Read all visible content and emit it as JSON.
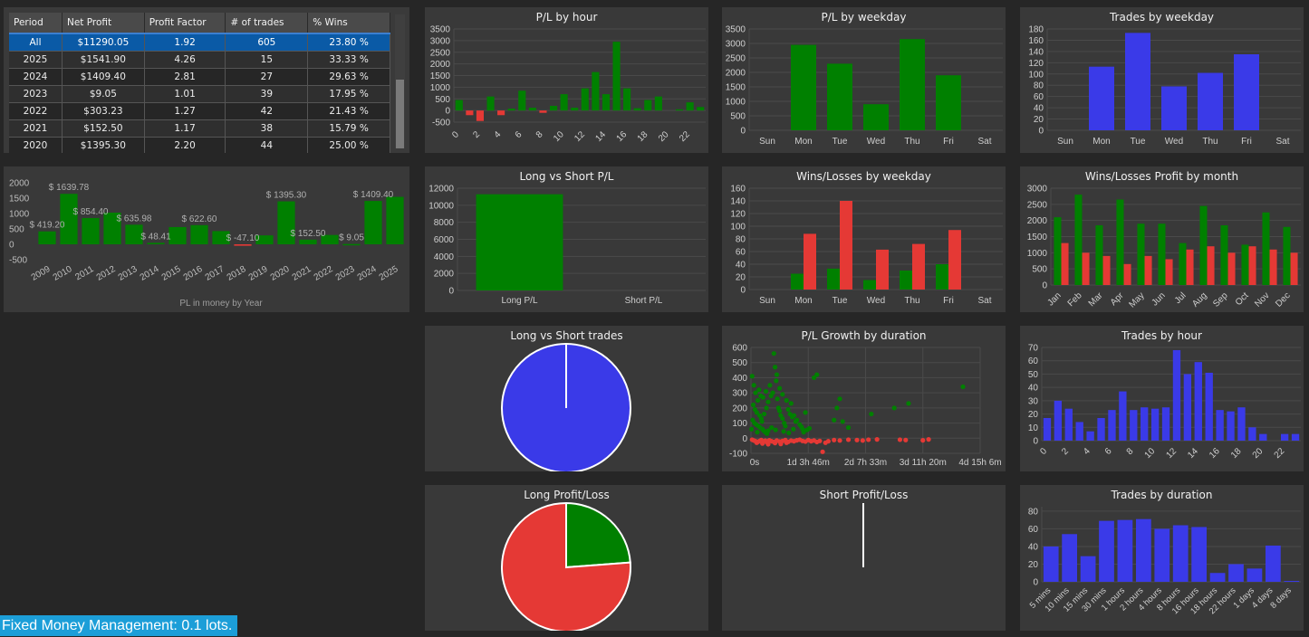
{
  "table": {
    "columns": [
      "Period",
      "Net Profit",
      "Profit Factor",
      "# of trades",
      "% Wins"
    ],
    "rows": [
      [
        "All",
        "$11290.05",
        "1.92",
        "605",
        "23.80 %"
      ],
      [
        "2025",
        "$1541.90",
        "4.26",
        "15",
        "33.33 %"
      ],
      [
        "2024",
        "$1409.40",
        "2.81",
        "27",
        "29.63 %"
      ],
      [
        "2023",
        "$9.05",
        "1.01",
        "39",
        "17.95 %"
      ],
      [
        "2022",
        "$303.23",
        "1.27",
        "42",
        "21.43 %"
      ],
      [
        "2021",
        "$152.50",
        "1.17",
        "38",
        "15.79 %"
      ],
      [
        "2020",
        "$1395.30",
        "2.20",
        "44",
        "25.00 %"
      ]
    ],
    "selected_row": 0
  },
  "footer": {
    "label": "Fixed Money Management: 0.1 lots."
  },
  "colors": {
    "green": "#008000",
    "red": "#e53935",
    "blue": "#3a3ae8",
    "selected": "#0a5aa6",
    "background": "#262626",
    "panel": "#393939"
  },
  "chart_data": [
    {
      "id": "pl_by_year",
      "type": "bar",
      "title": "",
      "xlabel": "PL in money by Year",
      "categories": [
        "2009",
        "2010",
        "2011",
        "2012",
        "2013",
        "2014",
        "2015",
        "2016",
        "2017",
        "2018",
        "2019",
        "2020",
        "2021",
        "2022",
        "2023",
        "2024",
        "2025"
      ],
      "values": [
        419.2,
        1639.78,
        854.4,
        1030,
        635.98,
        48.41,
        560,
        622.6,
        430,
        -47.1,
        290,
        1395.3,
        152.5,
        303.23,
        9.05,
        1409.4,
        1541.9
      ],
      "data_labels": {
        "0": "$ 419.20",
        "1": "$ 1639.78",
        "2": "$ 854.40",
        "4": "$ 635.98",
        "5": "$ 48.41",
        "7": "$ 622.60",
        "9": "$ -47.10",
        "11": "$ 1395.30",
        "12": "$ 152.50",
        "14": "$ 9.05",
        "15": "$ 1409.40"
      },
      "yticks": [
        -500,
        0,
        500,
        1000,
        1500,
        2000
      ],
      "ylim": [
        -500,
        2000
      ],
      "grid": false
    },
    {
      "id": "pl_by_hour",
      "type": "bar",
      "title": "P/L by hour",
      "categories": [
        "0",
        "1",
        "2",
        "3",
        "4",
        "5",
        "6",
        "7",
        "8",
        "9",
        "10",
        "11",
        "12",
        "13",
        "14",
        "15",
        "16",
        "17",
        "18",
        "19",
        "20",
        "21",
        "22",
        "23"
      ],
      "values": [
        450,
        -200,
        -450,
        600,
        -200,
        80,
        850,
        120,
        -100,
        200,
        700,
        120,
        950,
        1650,
        700,
        2950,
        950,
        100,
        450,
        600,
        0,
        50,
        350,
        150
      ],
      "xticks": [
        "0",
        "2",
        "4",
        "6",
        "8",
        "10",
        "12",
        "14",
        "16",
        "18",
        "20",
        "22"
      ],
      "yticks": [
        -500,
        0,
        500,
        1000,
        1500,
        2000,
        2500,
        3000,
        3500
      ],
      "ylim": [
        -500,
        3500
      ],
      "grid": true
    },
    {
      "id": "pl_by_weekday",
      "type": "bar",
      "title": "P/L by weekday",
      "categories": [
        "Sun",
        "Mon",
        "Tue",
        "Wed",
        "Thu",
        "Fri",
        "Sat"
      ],
      "values": [
        0,
        2950,
        2300,
        900,
        3150,
        1900,
        0
      ],
      "yticks": [
        0,
        500,
        1000,
        1500,
        2000,
        2500,
        3000,
        3500
      ],
      "ylim": [
        0,
        3500
      ],
      "grid": true
    },
    {
      "id": "trades_by_weekday",
      "type": "bar",
      "title": "Trades by weekday",
      "categories": [
        "Sun",
        "Mon",
        "Tue",
        "Wed",
        "Thu",
        "Fri",
        "Sat"
      ],
      "values": [
        0,
        113,
        173,
        78,
        102,
        135,
        0
      ],
      "yticks": [
        0,
        20,
        40,
        60,
        80,
        100,
        120,
        140,
        160,
        180
      ],
      "ylim": [
        0,
        180
      ],
      "grid": true
    },
    {
      "id": "long_vs_short_pl",
      "type": "bar",
      "title": "Long vs Short P/L",
      "categories": [
        "Long P/L",
        "Short P/L"
      ],
      "values": [
        11290.05,
        0
      ],
      "yticks": [
        0,
        2000,
        4000,
        6000,
        8000,
        10000,
        12000
      ],
      "ylim": [
        0,
        12000
      ],
      "grid": true
    },
    {
      "id": "wins_losses_by_weekday",
      "type": "bar",
      "title": "Wins/Losses by weekday",
      "categories": [
        "Sun",
        "Mon",
        "Tue",
        "Wed",
        "Thu",
        "Fri",
        "Sat"
      ],
      "series": [
        {
          "values": [
            0,
            25,
            33,
            15,
            30,
            40,
            0
          ]
        },
        {
          "values": [
            0,
            88,
            140,
            63,
            72,
            94,
            0
          ]
        }
      ],
      "yticks": [
        0,
        20,
        40,
        60,
        80,
        100,
        120,
        140,
        160
      ],
      "ylim": [
        0,
        160
      ],
      "grid": true
    },
    {
      "id": "wins_losses_profit_by_month",
      "type": "bar",
      "title": "Wins/Losses Profit by month",
      "categories": [
        "Jan",
        "Feb",
        "Mar",
        "Apr",
        "May",
        "Jun",
        "Jul",
        "Aug",
        "Sep",
        "Oct",
        "Nov",
        "Dec"
      ],
      "series": [
        {
          "values": [
            2100,
            2800,
            1850,
            2650,
            1900,
            1900,
            1300,
            2450,
            1850,
            1250,
            2250,
            1800
          ]
        },
        {
          "values": [
            1300,
            1000,
            900,
            650,
            900,
            800,
            1100,
            1200,
            1000,
            1200,
            1100,
            1000
          ]
        }
      ],
      "yticks": [
        0,
        500,
        1000,
        1500,
        2000,
        2500,
        3000
      ],
      "ylim": [
        0,
        3000
      ],
      "grid": true
    },
    {
      "id": "long_vs_short_trades",
      "type": "pie",
      "title": "Long vs Short trades",
      "slices": [
        {
          "value": 605
        },
        {
          "value": 0
        }
      ]
    },
    {
      "id": "pl_growth_by_duration",
      "type": "scatter",
      "title": "P/L Growth by duration",
      "xticks": [
        "0s",
        "1d 3h 46m",
        "2d 7h 33m",
        "3d 11h 20m",
        "4d 15h 6m"
      ],
      "yticks": [
        -100,
        0,
        100,
        200,
        300,
        400,
        500,
        600
      ],
      "ylim": [
        -100,
        600
      ],
      "grid": true,
      "series": [
        {
          "points": [
            [
              0.02,
              410
            ],
            [
              0.05,
              350
            ],
            [
              0.08,
              300
            ],
            [
              0.12,
              250
            ],
            [
              0.04,
              220
            ],
            [
              0.07,
              190
            ],
            [
              0.1,
              170
            ],
            [
              0.15,
              150
            ],
            [
              0.18,
              130
            ],
            [
              0.03,
              120
            ],
            [
              0.06,
              100
            ],
            [
              0.09,
              90
            ],
            [
              0.13,
              80
            ],
            [
              0.16,
              70
            ],
            [
              0.2,
              60
            ],
            [
              0.22,
              50
            ],
            [
              0.25,
              40
            ],
            [
              0.28,
              30
            ],
            [
              0.01,
              60
            ],
            [
              0.11,
              40
            ],
            [
              0.19,
              110
            ],
            [
              0.23,
              160
            ],
            [
              0.27,
              200
            ],
            [
              0.3,
              240
            ],
            [
              0.35,
              280
            ],
            [
              0.38,
              300
            ],
            [
              0.4,
              560
            ],
            [
              0.42,
              470
            ],
            [
              0.44,
              380
            ],
            [
              0.46,
              260
            ],
            [
              0.48,
              200
            ],
            [
              0.5,
              180
            ],
            [
              0.52,
              150
            ],
            [
              0.55,
              130
            ],
            [
              0.58,
              100
            ],
            [
              0.6,
              80
            ],
            [
              0.65,
              190
            ],
            [
              0.7,
              230
            ],
            [
              0.75,
              150
            ],
            [
              0.8,
              120
            ],
            [
              0.85,
              90
            ],
            [
              0.9,
              60
            ],
            [
              0.14,
              320
            ],
            [
              0.17,
              280
            ],
            [
              0.21,
              270
            ],
            [
              0.26,
              310
            ],
            [
              0.33,
              350
            ],
            [
              0.45,
              420
            ],
            [
              0.5,
              330
            ],
            [
              0.55,
              290
            ],
            [
              0.62,
              250
            ],
            [
              0.68,
              160
            ],
            [
              0.72,
              140
            ],
            [
              0.78,
              110
            ],
            [
              0.95,
              170
            ],
            [
              1.1,
              400
            ],
            [
              1.15,
              420
            ],
            [
              1.45,
              120
            ],
            [
              1.6,
              110
            ],
            [
              1.7,
              70
            ],
            [
              1.5,
              200
            ],
            [
              1.55,
              260
            ],
            [
              2.1,
              160
            ],
            [
              2.5,
              200
            ],
            [
              2.75,
              230
            ],
            [
              3.7,
              340
            ],
            [
              0.3,
              50
            ],
            [
              0.36,
              70
            ],
            [
              0.43,
              55
            ],
            [
              0.57,
              45
            ],
            [
              0.66,
              35
            ],
            [
              0.74,
              60
            ],
            [
              0.88,
              75
            ],
            [
              0.92,
              40
            ],
            [
              0.98,
              55
            ],
            [
              1.02,
              65
            ]
          ]
        },
        {
          "points": [
            [
              0.02,
              -10
            ],
            [
              0.05,
              -15
            ],
            [
              0.08,
              -20
            ],
            [
              0.12,
              -25
            ],
            [
              0.15,
              -18
            ],
            [
              0.18,
              -12
            ],
            [
              0.22,
              -22
            ],
            [
              0.25,
              -16
            ],
            [
              0.28,
              -28
            ],
            [
              0.32,
              -14
            ],
            [
              0.36,
              -20
            ],
            [
              0.4,
              -25
            ],
            [
              0.45,
              -15
            ],
            [
              0.5,
              -22
            ],
            [
              0.55,
              -18
            ],
            [
              0.6,
              -12
            ],
            [
              0.65,
              -24
            ],
            [
              0.7,
              -16
            ],
            [
              0.75,
              -20
            ],
            [
              0.8,
              -14
            ],
            [
              0.85,
              -10
            ],
            [
              0.9,
              -18
            ],
            [
              0.95,
              -22
            ],
            [
              1.0,
              -12
            ],
            [
              1.05,
              -20
            ],
            [
              1.1,
              -15
            ],
            [
              1.15,
              -25
            ],
            [
              1.2,
              -18
            ],
            [
              1.25,
              -90
            ],
            [
              1.3,
              -30
            ],
            [
              1.35,
              -20
            ],
            [
              1.45,
              -12
            ],
            [
              1.55,
              -15
            ],
            [
              1.7,
              -10
            ],
            [
              1.85,
              -12
            ],
            [
              1.95,
              -15
            ],
            [
              2.05,
              -10
            ],
            [
              2.2,
              -8
            ],
            [
              2.6,
              -10
            ],
            [
              2.7,
              -12
            ],
            [
              3.0,
              -14
            ],
            [
              3.1,
              -8
            ],
            [
              0.1,
              -30
            ],
            [
              0.2,
              -35
            ],
            [
              0.3,
              -40
            ],
            [
              0.42,
              -32
            ],
            [
              0.52,
              -38
            ],
            [
              0.62,
              -30
            ]
          ]
        }
      ]
    },
    {
      "id": "trades_by_hour",
      "type": "bar",
      "title": "Trades by hour",
      "categories": [
        "0",
        "1",
        "2",
        "3",
        "4",
        "5",
        "6",
        "7",
        "8",
        "9",
        "10",
        "11",
        "12",
        "13",
        "14",
        "15",
        "16",
        "17",
        "18",
        "19",
        "20",
        "21",
        "22",
        "23"
      ],
      "values": [
        17,
        30,
        24,
        14,
        7,
        17,
        23,
        37,
        23,
        25,
        24,
        25,
        68,
        50,
        59,
        51,
        23,
        22,
        25,
        10,
        5,
        0,
        5,
        5
      ],
      "xticks": [
        "0",
        "2",
        "4",
        "6",
        "8",
        "10",
        "12",
        "14",
        "16",
        "18",
        "20",
        "22"
      ],
      "yticks": [
        0,
        10,
        20,
        30,
        40,
        50,
        60,
        70
      ],
      "ylim": [
        0,
        70
      ],
      "grid": true
    },
    {
      "id": "long_profit_loss",
      "type": "pie",
      "title": "Long Profit/Loss",
      "slices": [
        {
          "value": 144
        },
        {
          "value": 461
        }
      ]
    },
    {
      "id": "short_profit_loss",
      "type": "pie",
      "title": "Short Profit/Loss",
      "slices": []
    },
    {
      "id": "trades_by_duration",
      "type": "bar",
      "title": "Trades by duration",
      "categories": [
        "5 mins",
        "10 mins",
        "15 mins",
        "30 mins",
        "1 hours",
        "2 hours",
        "4 hours",
        "8 hours",
        "16 hours",
        "18 hours",
        "22 hours",
        "1 days",
        "4 days",
        "8 days"
      ],
      "values": [
        40,
        54,
        29,
        69,
        70,
        71,
        60,
        64,
        62,
        10,
        20,
        15,
        41,
        1
      ],
      "yticks": [
        0,
        20,
        40,
        60,
        80
      ],
      "ylim": [
        0,
        85
      ],
      "grid": true
    }
  ]
}
